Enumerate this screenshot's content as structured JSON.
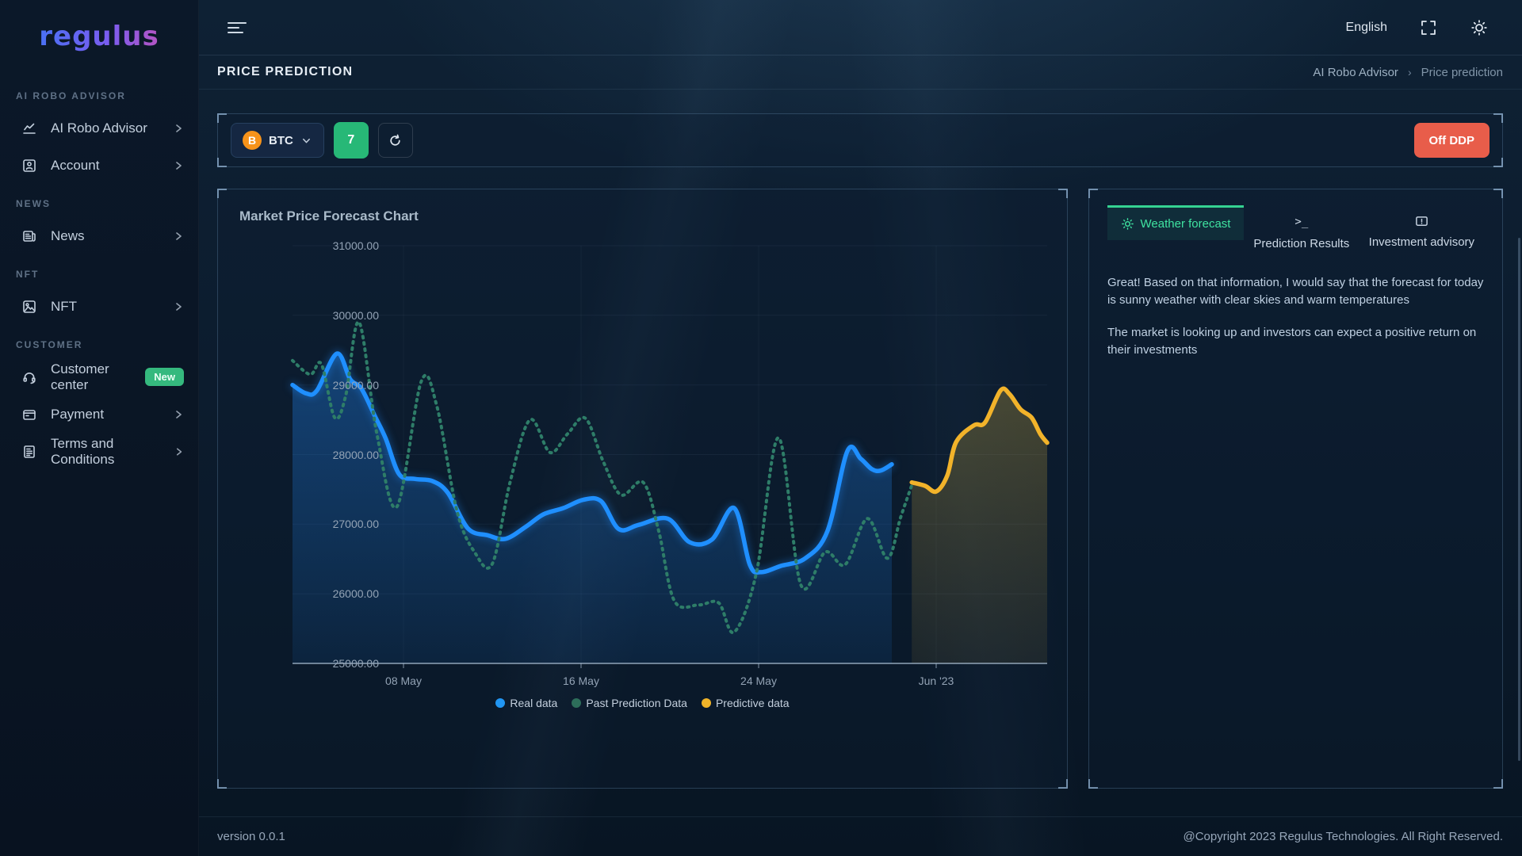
{
  "brand": {
    "logo_text": "regulus"
  },
  "topbar": {
    "language": "English"
  },
  "page_header": {
    "title": "PRICE PREDICTION",
    "breadcrumb": {
      "parent": "AI Robo Advisor",
      "separator": "›",
      "current": "Price prediction"
    }
  },
  "toolbar": {
    "coin": "BTC",
    "coin_symbol": "B",
    "days_value": "7",
    "off_button": "Off DDP"
  },
  "sidebar": {
    "sections": [
      {
        "label": "AI ROBO ADVISOR",
        "items": [
          {
            "label": "AI Robo Advisor",
            "icon": "chart-line-icon"
          },
          {
            "label": "Account",
            "icon": "account-card-icon"
          }
        ]
      },
      {
        "label": "NEWS",
        "items": [
          {
            "label": "News",
            "icon": "newspaper-icon"
          }
        ]
      },
      {
        "label": "NFT",
        "items": [
          {
            "label": "NFT",
            "icon": "image-icon"
          }
        ]
      },
      {
        "label": "CUSTOMER",
        "items": [
          {
            "label": "Customer center",
            "icon": "headset-icon",
            "badge": "New"
          },
          {
            "label": "Payment",
            "icon": "wallet-icon"
          },
          {
            "label": "Terms and Conditions",
            "icon": "document-icon"
          }
        ]
      }
    ]
  },
  "panel": {
    "tabs": [
      {
        "label": "Weather forecast",
        "icon": "sun-icon",
        "active": true
      },
      {
        "label": "Prediction Results",
        "icon": "terminal-icon",
        "active": false
      },
      {
        "label": "Investment advisory",
        "icon": "advisory-bubble-icon",
        "active": false
      }
    ],
    "paragraphs": [
      "Great! Based on that information, I would say that the forecast for today is sunny weather with clear skies and warm temperatures",
      "The market is looking up and investors can expect a positive return on their investments"
    ]
  },
  "footer": {
    "version": "version 0.0.1",
    "copyright": "@Copyright 2023 Regulus Technologies. All Right Reserved."
  },
  "chart_data": {
    "type": "line",
    "title": "Market Price Forecast Chart",
    "xlabel": "",
    "ylabel": "",
    "ylim": [
      25000,
      31000
    ],
    "x_range": [
      0,
      34
    ],
    "grid": "horizontal",
    "legend_position": "bottom",
    "y_ticks": [
      "31000.00",
      "30000.00",
      "29000.00",
      "28000.00",
      "27000.00",
      "26000.00",
      "25000.00"
    ],
    "x_ticks": [
      {
        "label": "08 May",
        "x": 5
      },
      {
        "label": "16 May",
        "x": 13
      },
      {
        "label": "24 May",
        "x": 21
      },
      {
        "label": "Jun '23",
        "x": 29
      }
    ],
    "series": [
      {
        "name": "Real data",
        "color": "#1f8fff",
        "style": "solid",
        "area": true,
        "points": [
          [
            0,
            29000
          ],
          [
            0.6,
            28880
          ],
          [
            1.1,
            28920
          ],
          [
            2.0,
            29450
          ],
          [
            2.6,
            29080
          ],
          [
            3.1,
            28950
          ],
          [
            3.7,
            28560
          ],
          [
            4.2,
            28230
          ],
          [
            4.8,
            27720
          ],
          [
            5.5,
            27650
          ],
          [
            6.3,
            27620
          ],
          [
            7.0,
            27450
          ],
          [
            7.9,
            26940
          ],
          [
            8.8,
            26840
          ],
          [
            9.6,
            26790
          ],
          [
            10.5,
            26960
          ],
          [
            11.3,
            27140
          ],
          [
            12.2,
            27230
          ],
          [
            13.1,
            27350
          ],
          [
            13.9,
            27330
          ],
          [
            14.7,
            26930
          ],
          [
            15.6,
            26990
          ],
          [
            16.9,
            27080
          ],
          [
            17.9,
            26740
          ],
          [
            18.9,
            26780
          ],
          [
            19.9,
            27230
          ],
          [
            20.6,
            26420
          ],
          [
            21.1,
            26310
          ],
          [
            22.0,
            26400
          ],
          [
            23.1,
            26510
          ],
          [
            24.1,
            26900
          ],
          [
            25.0,
            28050
          ],
          [
            25.6,
            27940
          ],
          [
            26.1,
            27790
          ],
          [
            26.5,
            27770
          ],
          [
            27.0,
            27860
          ]
        ]
      },
      {
        "name": "Past Prediction Data",
        "color": "#2e7d68",
        "style": "dotted",
        "area": false,
        "points": [
          [
            0,
            29350
          ],
          [
            0.8,
            29150
          ],
          [
            1.3,
            29300
          ],
          [
            1.9,
            28530
          ],
          [
            2.4,
            28850
          ],
          [
            3.0,
            29900
          ],
          [
            3.8,
            28300
          ],
          [
            4.7,
            27250
          ],
          [
            5.8,
            29050
          ],
          [
            6.5,
            28700
          ],
          [
            7.4,
            27200
          ],
          [
            8.2,
            26600
          ],
          [
            9.0,
            26430
          ],
          [
            9.8,
            27600
          ],
          [
            10.7,
            28500
          ],
          [
            11.6,
            28030
          ],
          [
            12.4,
            28300
          ],
          [
            13.2,
            28520
          ],
          [
            14.0,
            27900
          ],
          [
            14.8,
            27420
          ],
          [
            15.8,
            27600
          ],
          [
            16.5,
            26900
          ],
          [
            17.2,
            25900
          ],
          [
            18.3,
            25840
          ],
          [
            19.2,
            25870
          ],
          [
            19.9,
            25450
          ],
          [
            20.9,
            26300
          ],
          [
            21.9,
            28240
          ],
          [
            22.9,
            26130
          ],
          [
            24.0,
            26600
          ],
          [
            24.9,
            26420
          ],
          [
            25.9,
            27080
          ],
          [
            26.8,
            26510
          ],
          [
            27.4,
            27100
          ],
          [
            27.9,
            27560
          ]
        ]
      },
      {
        "name": "Predictive data",
        "color": "#f2b32a",
        "style": "solid",
        "area": true,
        "points": [
          [
            27.9,
            27600
          ],
          [
            28.5,
            27550
          ],
          [
            29.0,
            27470
          ],
          [
            29.5,
            27700
          ],
          [
            29.9,
            28180
          ],
          [
            30.7,
            28420
          ],
          [
            31.2,
            28460
          ],
          [
            31.9,
            28920
          ],
          [
            32.3,
            28870
          ],
          [
            32.8,
            28650
          ],
          [
            33.3,
            28530
          ],
          [
            33.7,
            28290
          ],
          [
            34,
            28170
          ]
        ]
      }
    ],
    "legend": [
      {
        "label": "Real data",
        "color": "#2196f3"
      },
      {
        "label": "Past Prediction Data",
        "color": "#2d6e5a"
      },
      {
        "label": "Predictive data",
        "color": "#f0b429"
      }
    ]
  }
}
